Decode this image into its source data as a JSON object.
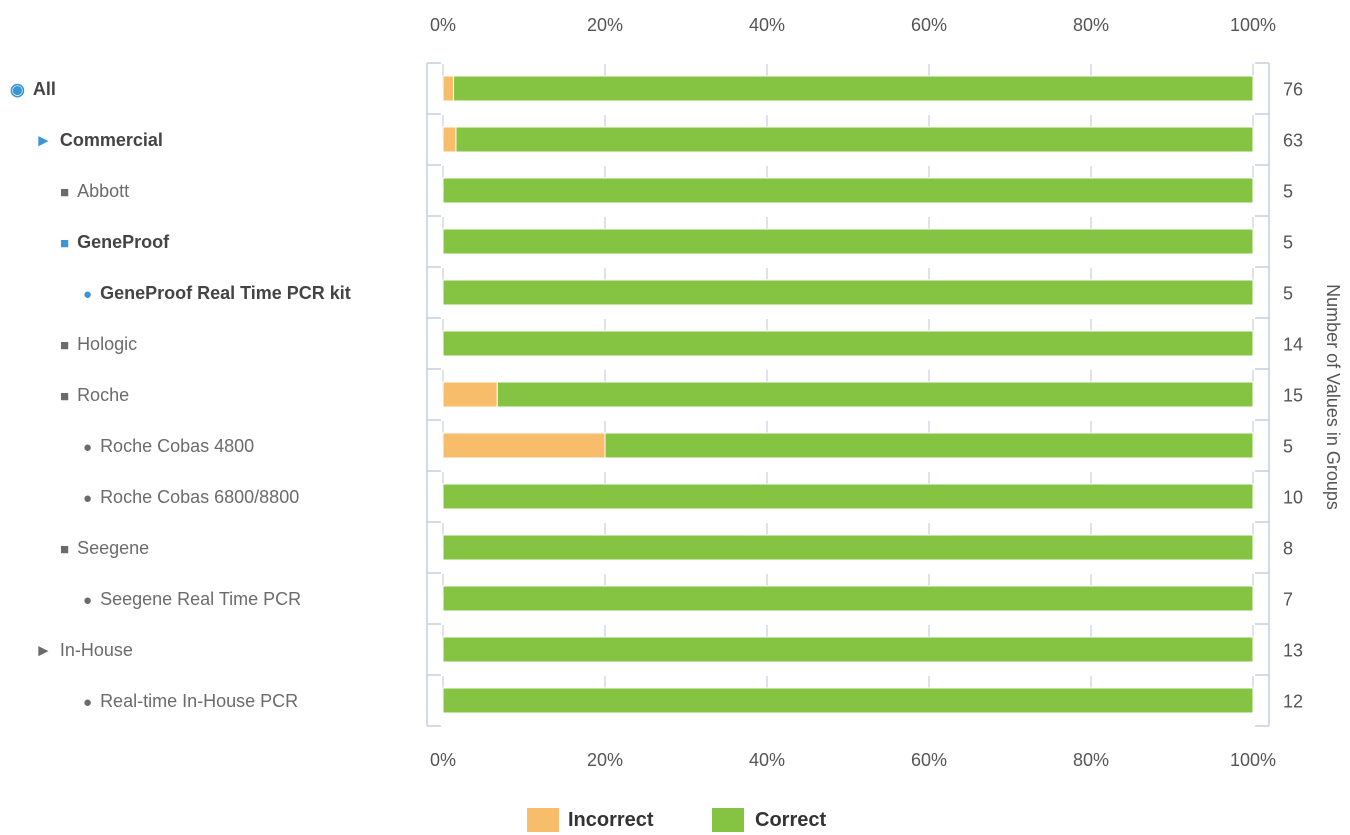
{
  "chart_data": {
    "type": "bar",
    "orientation": "horizontal",
    "stacked": true,
    "percent_stacked": true,
    "x_ticks": [
      "0%",
      "20%",
      "40%",
      "60%",
      "80%",
      "100%"
    ],
    "xlim": [
      0,
      100
    ],
    "secondary_axis_label": "Number of Values in Groups",
    "grid": true,
    "legend_position": "bottom",
    "series": [
      {
        "name": "Incorrect",
        "color": "#f8bd6b"
      },
      {
        "name": "Correct",
        "color": "#85c442"
      }
    ],
    "rows": [
      {
        "label": "All",
        "marker": "◉",
        "level": 0,
        "bold": true,
        "highlight": true,
        "count": "76",
        "incorrect": 1.3,
        "correct": 98.7
      },
      {
        "label": "Commercial",
        "marker": "►",
        "level": 1,
        "bold": true,
        "highlight": true,
        "count": "63",
        "incorrect": 1.6,
        "correct": 98.4
      },
      {
        "label": "Abbott",
        "marker": "■",
        "level": 2,
        "bold": false,
        "highlight": false,
        "count": "5",
        "incorrect": 0,
        "correct": 100
      },
      {
        "label": "GeneProof",
        "marker": "■",
        "level": 2,
        "bold": true,
        "highlight": true,
        "count": "5",
        "incorrect": 0,
        "correct": 100
      },
      {
        "label": "GeneProof Real Time PCR kit",
        "marker": "●",
        "level": 3,
        "bold": true,
        "highlight": true,
        "count": "5",
        "incorrect": 0,
        "correct": 100
      },
      {
        "label": "Hologic",
        "marker": "■",
        "level": 2,
        "bold": false,
        "highlight": false,
        "count": "14",
        "incorrect": 0,
        "correct": 100
      },
      {
        "label": "Roche",
        "marker": "■",
        "level": 2,
        "bold": false,
        "highlight": false,
        "count": "15",
        "incorrect": 6.7,
        "correct": 93.3
      },
      {
        "label": "Roche Cobas 4800",
        "marker": "●",
        "level": 3,
        "bold": false,
        "highlight": false,
        "count": "5",
        "incorrect": 20,
        "correct": 80
      },
      {
        "label": "Roche Cobas 6800/8800",
        "marker": "●",
        "level": 3,
        "bold": false,
        "highlight": false,
        "count": "10",
        "incorrect": 0,
        "correct": 100
      },
      {
        "label": "Seegene",
        "marker": "■",
        "level": 2,
        "bold": false,
        "highlight": false,
        "count": "8",
        "incorrect": 0,
        "correct": 100
      },
      {
        "label": "Seegene Real Time PCR",
        "marker": "●",
        "level": 3,
        "bold": false,
        "highlight": false,
        "count": "7",
        "incorrect": 0,
        "correct": 100
      },
      {
        "label": "In-House",
        "marker": "►",
        "level": 1,
        "bold": false,
        "highlight": false,
        "count": "13",
        "incorrect": 0,
        "correct": 100
      },
      {
        "label": "Real-time In-House PCR",
        "marker": "●",
        "level": 3,
        "bold": false,
        "highlight": false,
        "count": "12",
        "incorrect": 0,
        "correct": 100
      }
    ]
  },
  "colors": {
    "highlight_marker": "#3a95d6",
    "bold_text": "#444444",
    "normal_text": "#6b6b6b",
    "grid": "#d4d9e6",
    "axis": "#c5cde0"
  }
}
